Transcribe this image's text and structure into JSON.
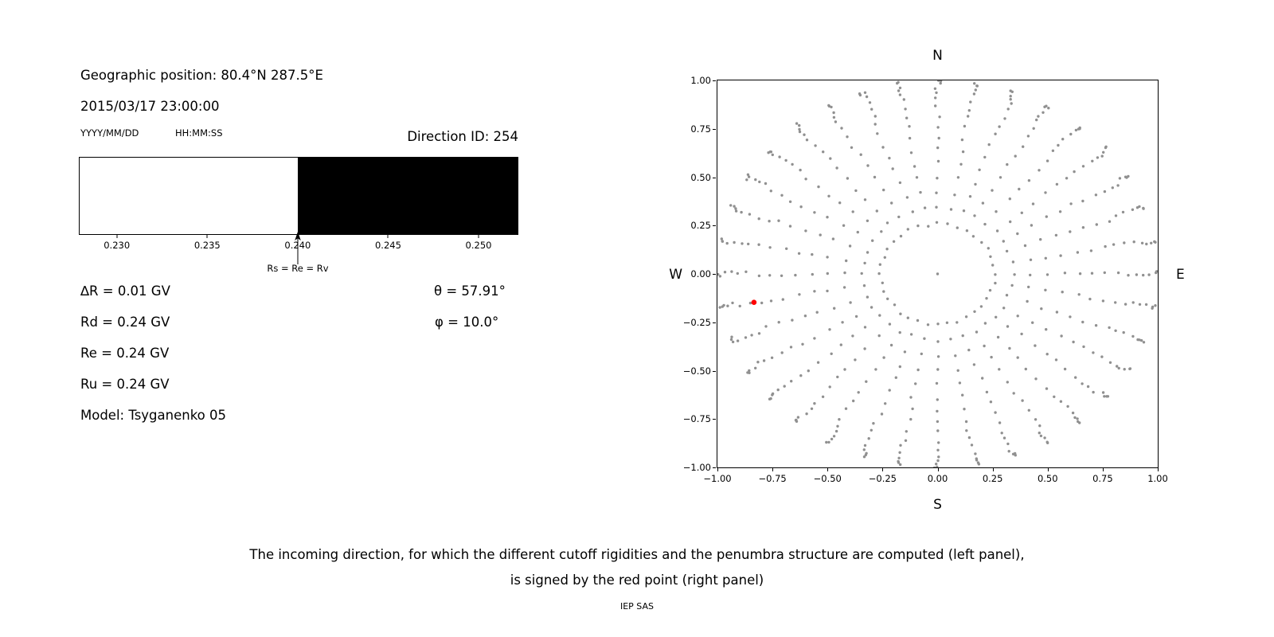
{
  "page": {
    "background": "#ffffff"
  },
  "left_panel": {
    "geo_position": "Geographic position: 80.4°N 287.5°E",
    "datetime": "2015/03/17 23:00:00",
    "date_format_label": "YYYY/MM/DD",
    "time_format_label": "HH:MM:SS",
    "lines": [
      "∆R = 0.01 GV",
      "Rd = 0.24 GV",
      "Re = 0.24 GV",
      "Ru = 0.24 GV",
      "Model: Tsyganenko 05"
    ],
    "theta": "θ = 57.91°",
    "phi": "φ = 10.0°"
  },
  "caption": {
    "line1": "The incoming direction, for which the different cutoff rigidities and the penumbra structure are computed (left panel),",
    "line2": "is signed by the red point (right panel)",
    "credit": "IEP SAS"
  },
  "chart_data": [
    {
      "id": "penumbra-spectrum",
      "type": "bar",
      "title": "Direction ID: 254",
      "unit": "GV",
      "xlim": [
        0.2279,
        0.2522
      ],
      "x_ticks": [
        0.23,
        0.235,
        0.24,
        0.245,
        0.25
      ],
      "segments": [
        {
          "from": 0.2279,
          "to": 0.24,
          "state": "allowed",
          "color": "#ffffff"
        },
        {
          "from": 0.24,
          "to": 0.2522,
          "state": "forbidden",
          "color": "#000000"
        }
      ],
      "marker": {
        "x": 0.24,
        "label": "Rs = Re = Rv"
      },
      "cutoffs_gv": {
        "deltaR": 0.01,
        "Rd": 0.24,
        "Re": 0.24,
        "Ru": 0.24
      }
    },
    {
      "id": "incoming-direction-map",
      "type": "scatter",
      "xlim": [
        -1.0,
        1.0
      ],
      "ylim": [
        -1.0,
        1.0
      ],
      "x_ticks": [
        -1.0,
        -0.75,
        -0.5,
        -0.25,
        0.0,
        0.25,
        0.5,
        0.75,
        1.0
      ],
      "y_ticks": [
        1.0,
        0.75,
        0.5,
        0.25,
        0.0,
        -0.25,
        -0.5,
        -0.75,
        -1.0
      ],
      "grid": false,
      "compass": {
        "top": "N",
        "bottom": "S",
        "left": "W",
        "right": "E"
      },
      "dot_color": "#909090",
      "spokes": {
        "azimuth_start_deg": 0,
        "azimuth_step_deg": 10,
        "azimuth_count": 36,
        "zenith_min_deg": 15,
        "zenith_max_deg": 90,
        "zenith_step_deg": 5,
        "radius_mapping": "sin(zenith)",
        "include_center_dot": true
      },
      "red_point": {
        "x": -0.834,
        "y": -0.147,
        "zenith_deg": 57.91,
        "azimuth_deg": 10.0,
        "color": "#ff0000"
      }
    }
  ]
}
